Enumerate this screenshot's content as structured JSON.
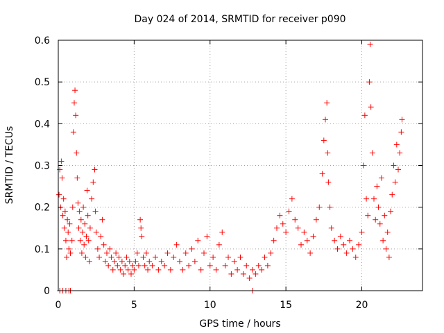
{
  "chart_data": {
    "type": "scatter",
    "title": "Day 024 of 2014, SRMTID for receiver p090",
    "xlabel": "GPS time / hours",
    "ylabel": "SRMTID / TECUs",
    "xlim": [
      0,
      24
    ],
    "ylim": [
      0,
      0.6
    ],
    "xticks": [
      0,
      5,
      10,
      15,
      20
    ],
    "yticks": [
      0,
      0.1,
      0.2,
      0.3,
      0.4,
      0.5,
      0.6
    ],
    "xtick_labels": [
      "0",
      "5",
      "10",
      "15",
      "20"
    ],
    "ytick_labels": [
      "0",
      "0.1",
      "0.2",
      "0.3",
      "0.4",
      "0.5",
      "0.6"
    ],
    "grid": true,
    "marker": "plus",
    "color": "#ff0000",
    "series": [
      {
        "name": "SRMTID",
        "points": [
          [
            0.05,
            0.23
          ],
          [
            0.1,
            0.29
          ],
          [
            0.15,
            0.2
          ],
          [
            0.2,
            0.31
          ],
          [
            0.25,
            0.27
          ],
          [
            0.3,
            0.18
          ],
          [
            0.35,
            0.22
          ],
          [
            0.4,
            0.15
          ],
          [
            0.45,
            0.19
          ],
          [
            0.5,
            0.12
          ],
          [
            0.55,
            0.08
          ],
          [
            0.6,
            0.17
          ],
          [
            0.65,
            0.14
          ],
          [
            0.7,
            0.1
          ],
          [
            0.75,
            0.16
          ],
          [
            0.8,
            0.09
          ],
          [
            0.9,
            0.12
          ],
          [
            0.95,
            0.2
          ],
          [
            1.0,
            0.38
          ],
          [
            1.05,
            0.45
          ],
          [
            1.1,
            0.48
          ],
          [
            1.15,
            0.42
          ],
          [
            1.2,
            0.33
          ],
          [
            1.25,
            0.27
          ],
          [
            1.3,
            0.21
          ],
          [
            1.35,
            0.15
          ],
          [
            1.4,
            0.19
          ],
          [
            1.45,
            0.12
          ],
          [
            1.5,
            0.17
          ],
          [
            1.55,
            0.09
          ],
          [
            1.6,
            0.14
          ],
          [
            1.65,
            0.2
          ],
          [
            1.7,
            0.11
          ],
          [
            1.75,
            0.16
          ],
          [
            1.8,
            0.08
          ],
          [
            1.85,
            0.13
          ],
          [
            1.9,
            0.24
          ],
          [
            1.95,
            0.18
          ],
          [
            2.0,
            0.12
          ],
          [
            2.05,
            0.07
          ],
          [
            2.1,
            0.15
          ],
          [
            2.2,
            0.22
          ],
          [
            2.3,
            0.26
          ],
          [
            2.4,
            0.29
          ],
          [
            2.45,
            0.19
          ],
          [
            2.5,
            0.14
          ],
          [
            2.6,
            0.1
          ],
          [
            2.7,
            0.08
          ],
          [
            2.8,
            0.13
          ],
          [
            2.9,
            0.17
          ],
          [
            3.0,
            0.11
          ],
          [
            3.1,
            0.07
          ],
          [
            3.2,
            0.09
          ],
          [
            3.3,
            0.06
          ],
          [
            3.4,
            0.1
          ],
          [
            3.5,
            0.08
          ],
          [
            3.6,
            0.05
          ],
          [
            3.7,
            0.07
          ],
          [
            3.8,
            0.09
          ],
          [
            3.9,
            0.06
          ],
          [
            4.0,
            0.08
          ],
          [
            4.1,
            0.05
          ],
          [
            4.2,
            0.07
          ],
          [
            4.3,
            0.04
          ],
          [
            4.4,
            0.06
          ],
          [
            4.5,
            0.08
          ],
          [
            4.6,
            0.05
          ],
          [
            4.7,
            0.07
          ],
          [
            4.8,
            0.04
          ],
          [
            4.9,
            0.06
          ],
          [
            5.0,
            0.05
          ],
          [
            5.1,
            0.07
          ],
          [
            5.2,
            0.09
          ],
          [
            5.3,
            0.06
          ],
          [
            5.4,
            0.17
          ],
          [
            5.45,
            0.15
          ],
          [
            5.5,
            0.13
          ],
          [
            5.6,
            0.08
          ],
          [
            5.7,
            0.06
          ],
          [
            5.8,
            0.09
          ],
          [
            5.9,
            0.05
          ],
          [
            6.0,
            0.07
          ],
          [
            6.2,
            0.06
          ],
          [
            6.4,
            0.08
          ],
          [
            6.6,
            0.05
          ],
          [
            6.8,
            0.07
          ],
          [
            7.0,
            0.06
          ],
          [
            7.2,
            0.09
          ],
          [
            7.4,
            0.05
          ],
          [
            7.6,
            0.08
          ],
          [
            7.8,
            0.11
          ],
          [
            8.0,
            0.07
          ],
          [
            8.2,
            0.05
          ],
          [
            8.4,
            0.09
          ],
          [
            8.6,
            0.06
          ],
          [
            8.8,
            0.1
          ],
          [
            9.0,
            0.07
          ],
          [
            9.2,
            0.12
          ],
          [
            9.4,
            0.05
          ],
          [
            9.6,
            0.09
          ],
          [
            9.8,
            0.13
          ],
          [
            10.0,
            0.06
          ],
          [
            10.2,
            0.08
          ],
          [
            10.4,
            0.05
          ],
          [
            10.6,
            0.11
          ],
          [
            10.8,
            0.14
          ],
          [
            11.0,
            0.06
          ],
          [
            11.2,
            0.08
          ],
          [
            11.4,
            0.04
          ],
          [
            11.6,
            0.07
          ],
          [
            11.8,
            0.05
          ],
          [
            12.0,
            0.08
          ],
          [
            12.2,
            0.04
          ],
          [
            12.4,
            0.06
          ],
          [
            12.6,
            0.03
          ],
          [
            12.8,
            0.05
          ],
          [
            13.0,
            0.04
          ],
          [
            13.2,
            0.06
          ],
          [
            13.4,
            0.05
          ],
          [
            13.6,
            0.08
          ],
          [
            13.8,
            0.06
          ],
          [
            14.0,
            0.09
          ],
          [
            14.2,
            0.12
          ],
          [
            14.4,
            0.15
          ],
          [
            14.6,
            0.18
          ],
          [
            14.8,
            0.16
          ],
          [
            15.0,
            0.14
          ],
          [
            15.2,
            0.19
          ],
          [
            15.4,
            0.22
          ],
          [
            15.6,
            0.17
          ],
          [
            15.8,
            0.15
          ],
          [
            16.0,
            0.11
          ],
          [
            16.2,
            0.14
          ],
          [
            16.4,
            0.12
          ],
          [
            16.6,
            0.09
          ],
          [
            16.8,
            0.13
          ],
          [
            17.0,
            0.17
          ],
          [
            17.2,
            0.2
          ],
          [
            17.4,
            0.28
          ],
          [
            17.5,
            0.36
          ],
          [
            17.6,
            0.41
          ],
          [
            17.7,
            0.45
          ],
          [
            17.75,
            0.33
          ],
          [
            17.8,
            0.26
          ],
          [
            17.9,
            0.2
          ],
          [
            18.0,
            0.15
          ],
          [
            18.2,
            0.12
          ],
          [
            18.4,
            0.1
          ],
          [
            18.6,
            0.13
          ],
          [
            18.8,
            0.11
          ],
          [
            19.0,
            0.09
          ],
          [
            19.2,
            0.12
          ],
          [
            19.4,
            0.1
          ],
          [
            19.6,
            0.08
          ],
          [
            19.8,
            0.11
          ],
          [
            20.0,
            0.14
          ],
          [
            20.1,
            0.3
          ],
          [
            20.2,
            0.42
          ],
          [
            20.3,
            0.22
          ],
          [
            20.4,
            0.18
          ],
          [
            20.5,
            0.5
          ],
          [
            20.55,
            0.59
          ],
          [
            20.6,
            0.44
          ],
          [
            20.7,
            0.33
          ],
          [
            20.8,
            0.22
          ],
          [
            20.9,
            0.17
          ],
          [
            21.0,
            0.25
          ],
          [
            21.1,
            0.2
          ],
          [
            21.2,
            0.16
          ],
          [
            21.3,
            0.27
          ],
          [
            21.4,
            0.12
          ],
          [
            21.5,
            0.18
          ],
          [
            21.6,
            0.1
          ],
          [
            21.7,
            0.14
          ],
          [
            21.8,
            0.08
          ],
          [
            21.9,
            0.19
          ],
          [
            22.0,
            0.23
          ],
          [
            22.1,
            0.3
          ],
          [
            22.2,
            0.26
          ],
          [
            22.3,
            0.35
          ],
          [
            22.4,
            0.29
          ],
          [
            22.5,
            0.33
          ],
          [
            22.6,
            0.38
          ],
          [
            22.65,
            0.41
          ]
        ],
        "baseline_points": [
          [
            0.1,
            0.0
          ],
          [
            0.3,
            0.0
          ],
          [
            0.5,
            0.0
          ],
          [
            0.7,
            0.0
          ],
          [
            0.8,
            0.0
          ],
          [
            12.8,
            0.0
          ]
        ]
      }
    ]
  }
}
